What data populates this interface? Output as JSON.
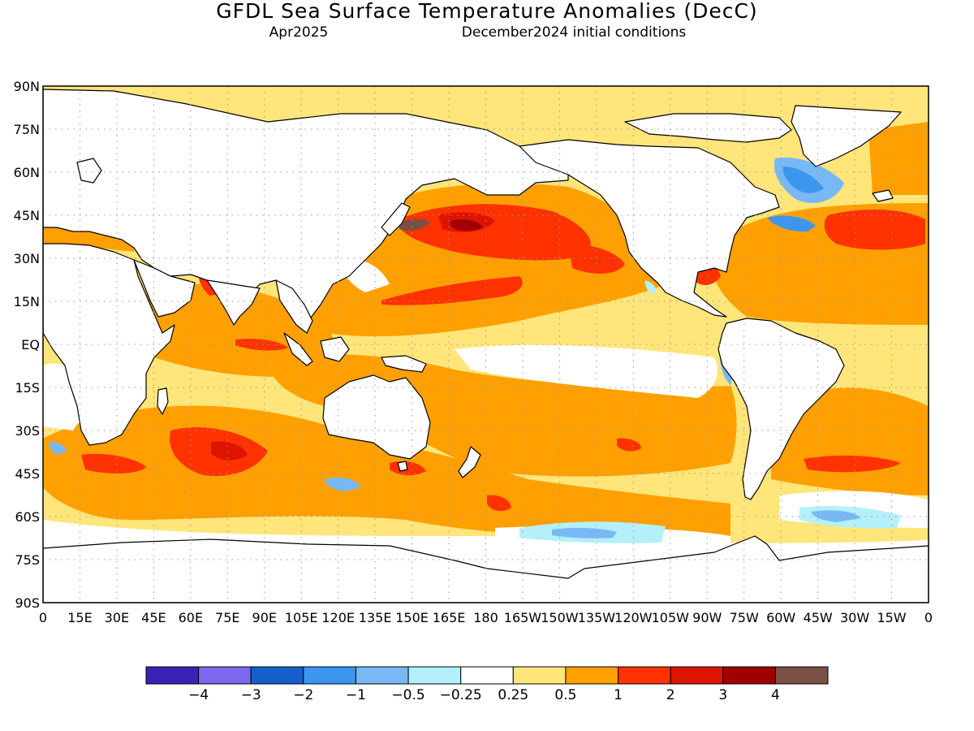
{
  "header": {
    "title": "GFDL Sea Surface Temperature Anomalies (DecC)",
    "target_month": "Apr2025",
    "init_conditions": "December2024 initial conditions"
  },
  "axes": {
    "lat_labels": [
      "90N",
      "75N",
      "60N",
      "45N",
      "30N",
      "15N",
      "EQ",
      "15S",
      "30S",
      "45S",
      "60S",
      "75S",
      "90S"
    ],
    "lon_labels": [
      "0",
      "15E",
      "30E",
      "45E",
      "60E",
      "75E",
      "90E",
      "105E",
      "120E",
      "135E",
      "150E",
      "165E",
      "180",
      "165W",
      "150W",
      "135W",
      "120W",
      "105W",
      "90W",
      "75W",
      "60W",
      "45W",
      "30W",
      "15W",
      "0"
    ],
    "lat_range": [
      -90,
      90
    ],
    "lon_range": [
      0,
      360
    ],
    "grid": "dotted"
  },
  "colorbar": {
    "colors": [
      "#3a22b8",
      "#7b68ee",
      "#1560cc",
      "#3c96f0",
      "#78b8f6",
      "#b4f0fa",
      "#ffffff",
      "#ffe57a",
      "#ffa000",
      "#ff3200",
      "#dc1400",
      "#a00000",
      "#7a5044"
    ],
    "labels": [
      "−4",
      "−3",
      "−2",
      "−1",
      "−0.5",
      "−0.25",
      "0.25",
      "0.5",
      "1",
      "2",
      "3",
      "4"
    ],
    "thresholds": [
      -4,
      -3,
      -2,
      -1,
      -0.5,
      -0.25,
      0.25,
      0.5,
      1,
      2,
      3,
      4
    ]
  },
  "map": {
    "ocean_fill_default": "#ffe57a",
    "land_fill": "#ffffff",
    "coastline_color": "#000000"
  }
}
